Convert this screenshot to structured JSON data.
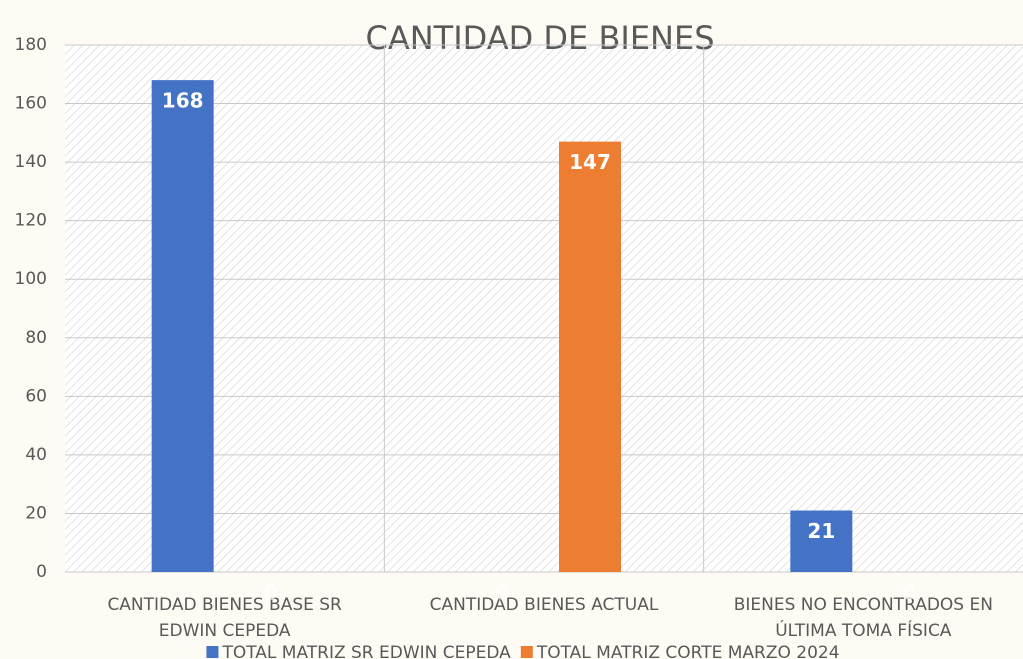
{
  "chart_data": {
    "type": "bar",
    "title": "CANTIDAD DE BIENES",
    "categories": [
      "CANTIDAD BIENES BASE SR EDWIN CEPEDA",
      "CANTIDAD BIENES ACTUAL",
      "BIENES NO ENCONTRADOS EN ÚLTIMA TOMA FÍSICA"
    ],
    "series": [
      {
        "name": "TOTAL MATRIZ SR EDWIN CEPEDA",
        "color": "#4472c4",
        "values": [
          168,
          0,
          21
        ]
      },
      {
        "name": "TOTAL MATRIZ CORTE MARZO 2024",
        "color": "#ed7d31",
        "values": [
          0,
          147,
          0
        ]
      }
    ],
    "ylim": [
      0,
      180
    ],
    "yticks": [
      0,
      20,
      40,
      60,
      80,
      100,
      120,
      140,
      160,
      180
    ],
    "grid": true,
    "legend": "bottom"
  }
}
